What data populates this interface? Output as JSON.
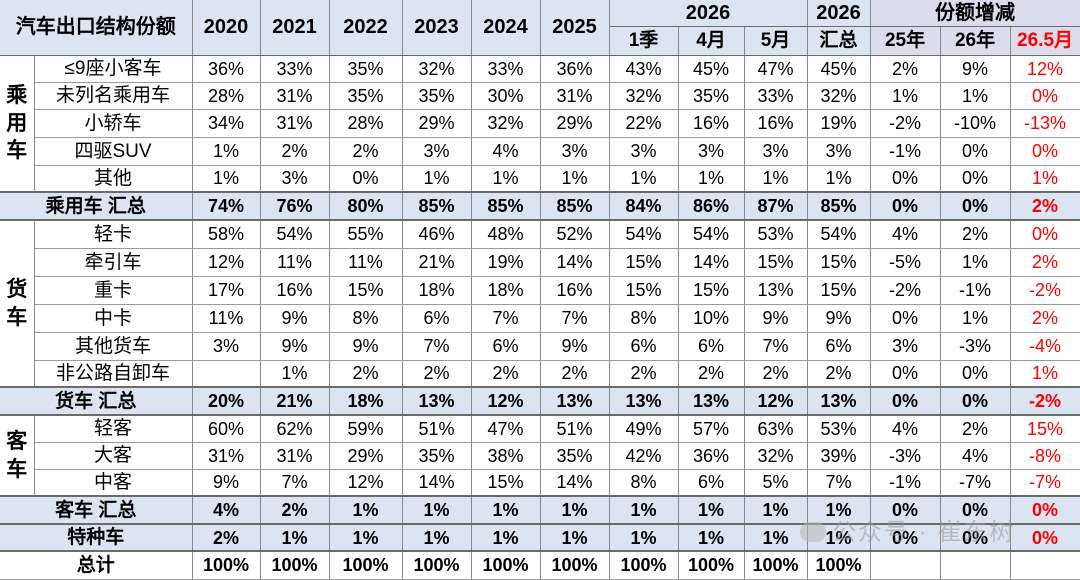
{
  "header": {
    "corner": "汽车出口结构份额",
    "years": [
      "2020",
      "2021",
      "2022",
      "2023",
      "2024",
      "2025"
    ],
    "current_year": "2026",
    "current_subs": [
      "1季",
      "4月",
      "5月"
    ],
    "total_year": "2026",
    "total_label": "汇总",
    "share_change": "份额增减",
    "change_cols": [
      "25年",
      "26年",
      "26.5月"
    ]
  },
  "groups": {
    "passenger": "乘用车",
    "truck": "货车",
    "bus": "客车"
  },
  "rows": [
    {
      "name": "≤9座小客车",
      "vals": [
        "36%",
        "33%",
        "35%",
        "32%",
        "33%",
        "36%",
        "43%",
        "45%",
        "47%",
        "45%",
        "2%",
        "9%",
        "12%"
      ]
    },
    {
      "name": "未列名乘用车",
      "vals": [
        "28%",
        "31%",
        "35%",
        "35%",
        "30%",
        "31%",
        "32%",
        "35%",
        "33%",
        "32%",
        "1%",
        "1%",
        "0%"
      ]
    },
    {
      "name": "小轿车",
      "vals": [
        "34%",
        "31%",
        "28%",
        "29%",
        "32%",
        "29%",
        "22%",
        "16%",
        "16%",
        "19%",
        "-2%",
        "-10%",
        "-13%"
      ]
    },
    {
      "name": "四驱SUV",
      "vals": [
        "1%",
        "2%",
        "2%",
        "3%",
        "4%",
        "3%",
        "3%",
        "3%",
        "3%",
        "3%",
        "-1%",
        "0%",
        "0%"
      ]
    },
    {
      "name": "其他",
      "vals": [
        "1%",
        "3%",
        "0%",
        "1%",
        "1%",
        "1%",
        "1%",
        "1%",
        "1%",
        "1%",
        "0%",
        "0%",
        "1%"
      ]
    },
    {
      "name": "乘用车 汇总",
      "vals": [
        "74%",
        "76%",
        "80%",
        "85%",
        "85%",
        "85%",
        "84%",
        "86%",
        "87%",
        "85%",
        "0%",
        "0%",
        "2%"
      ]
    },
    {
      "name": "轻卡",
      "vals": [
        "58%",
        "54%",
        "55%",
        "46%",
        "48%",
        "52%",
        "54%",
        "54%",
        "53%",
        "54%",
        "4%",
        "2%",
        "0%"
      ]
    },
    {
      "name": "牵引车",
      "vals": [
        "12%",
        "11%",
        "11%",
        "21%",
        "19%",
        "14%",
        "15%",
        "14%",
        "15%",
        "15%",
        "-5%",
        "1%",
        "2%"
      ]
    },
    {
      "name": "重卡",
      "vals": [
        "17%",
        "16%",
        "15%",
        "18%",
        "18%",
        "16%",
        "15%",
        "15%",
        "13%",
        "15%",
        "-2%",
        "-1%",
        "-2%"
      ]
    },
    {
      "name": "中卡",
      "vals": [
        "11%",
        "9%",
        "8%",
        "6%",
        "7%",
        "7%",
        "8%",
        "10%",
        "9%",
        "9%",
        "0%",
        "1%",
        "2%"
      ]
    },
    {
      "name": "其他货车",
      "vals": [
        "3%",
        "9%",
        "9%",
        "7%",
        "6%",
        "9%",
        "6%",
        "6%",
        "7%",
        "6%",
        "3%",
        "-3%",
        "-4%"
      ]
    },
    {
      "name": "非公路自卸车",
      "vals": [
        "",
        "1%",
        "2%",
        "2%",
        "2%",
        "2%",
        "2%",
        "2%",
        "2%",
        "2%",
        "0%",
        "0%",
        "1%"
      ]
    },
    {
      "name": "货车 汇总",
      "vals": [
        "20%",
        "21%",
        "18%",
        "13%",
        "12%",
        "13%",
        "13%",
        "13%",
        "12%",
        "13%",
        "0%",
        "0%",
        "-2%"
      ]
    },
    {
      "name": "轻客",
      "vals": [
        "60%",
        "62%",
        "59%",
        "51%",
        "47%",
        "51%",
        "49%",
        "57%",
        "63%",
        "53%",
        "4%",
        "2%",
        "15%"
      ]
    },
    {
      "name": "大客",
      "vals": [
        "31%",
        "31%",
        "29%",
        "35%",
        "38%",
        "35%",
        "42%",
        "36%",
        "32%",
        "39%",
        "-3%",
        "4%",
        "-8%"
      ]
    },
    {
      "name": "中客",
      "vals": [
        "9%",
        "7%",
        "12%",
        "14%",
        "15%",
        "14%",
        "8%",
        "6%",
        "5%",
        "7%",
        "-1%",
        "-7%",
        "-7%"
      ]
    },
    {
      "name": "客车 汇总",
      "vals": [
        "4%",
        "2%",
        "1%",
        "1%",
        "1%",
        "1%",
        "1%",
        "1%",
        "1%",
        "1%",
        "0%",
        "0%",
        "0%"
      ]
    },
    {
      "name": "特种车",
      "vals": [
        "2%",
        "1%",
        "1%",
        "1%",
        "1%",
        "1%",
        "1%",
        "1%",
        "1%",
        "1%",
        "0%",
        "0%",
        "0%"
      ]
    },
    {
      "name": "总计",
      "vals": [
        "100%",
        "100%",
        "100%",
        "100%",
        "100%",
        "100%",
        "100%",
        "100%",
        "100%",
        "100%",
        "",
        "",
        ""
      ]
    }
  ],
  "watermark": "公众号 · 崔东树",
  "colors": {
    "header_bg": "#dbe5f1",
    "share_header_bg": "#dcdcec",
    "subtotal_bg": "#dbe5f1",
    "highlight": "#ff0000"
  }
}
